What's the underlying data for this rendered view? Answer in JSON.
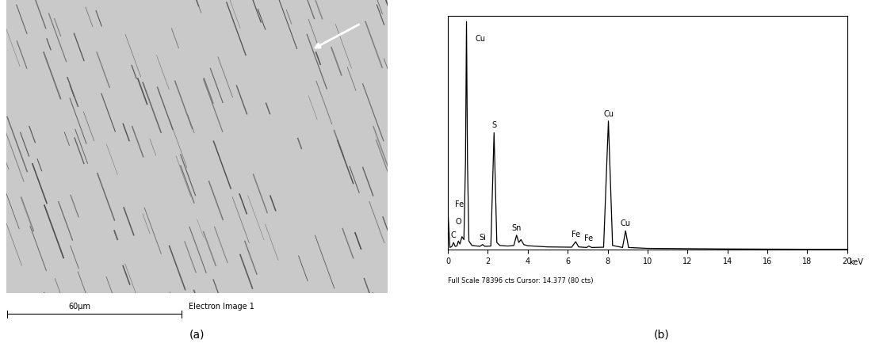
{
  "image_panel": {
    "label": "(a)",
    "scale_bar": "60µm",
    "caption": "Electron Image 1"
  },
  "chart_data": {
    "type": "line",
    "label": "(b)",
    "color": "#000000",
    "x": [
      0,
      0.1,
      0.2,
      0.28,
      0.36,
      0.45,
      0.52,
      0.6,
      0.7,
      0.8,
      0.88,
      0.93,
      0.98,
      1.05,
      1.2,
      1.6,
      1.74,
      1.85,
      2.15,
      2.31,
      2.45,
      2.6,
      3.0,
      3.3,
      3.44,
      3.55,
      3.66,
      3.8,
      4.0,
      5.0,
      6.2,
      6.4,
      6.55,
      6.95,
      7.06,
      7.2,
      7.8,
      8.04,
      8.25,
      8.75,
      8.9,
      9.05,
      10,
      12,
      14,
      16,
      18,
      20
    ],
    "values": [
      13000,
      800,
      1200,
      2500,
      1200,
      1300,
      3000,
      2000,
      4500,
      3500,
      30000,
      78000,
      30000,
      3000,
      1500,
      1200,
      1800,
      1200,
      1300,
      40000,
      2500,
      1500,
      1300,
      1500,
      5000,
      2500,
      3500,
      1800,
      1400,
      1000,
      900,
      2800,
      1000,
      800,
      1300,
      800,
      900,
      44000,
      1500,
      800,
      6500,
      800,
      500,
      400,
      300,
      250,
      200,
      200
    ],
    "xlim": [
      0,
      20
    ],
    "xticks": [
      0,
      2,
      4,
      6,
      8,
      10,
      12,
      14,
      16,
      18,
      20
    ],
    "ylim": [
      0,
      80000
    ],
    "yticks": [],
    "tick_labels": "x",
    "x_label": "keV",
    "footer": "Full Scale 78396 cts Cursor: 14.377 (80 cts)",
    "annotations": [
      {
        "text": "C",
        "x": 0.28
      },
      {
        "text": "O",
        "x": 0.52
      },
      {
        "text": "Fe",
        "x": 0.7
      },
      {
        "text": "Cu",
        "x": 0.93
      },
      {
        "text": "Si",
        "x": 1.74
      },
      {
        "text": "S",
        "x": 2.31
      },
      {
        "text": "Sn",
        "x": 3.44
      },
      {
        "text": "Fe",
        "x": 6.4
      },
      {
        "text": "Fe",
        "x": 7.06
      },
      {
        "text": "Cu",
        "x": 8.04
      },
      {
        "text": "Cu",
        "x": 8.9
      }
    ]
  }
}
